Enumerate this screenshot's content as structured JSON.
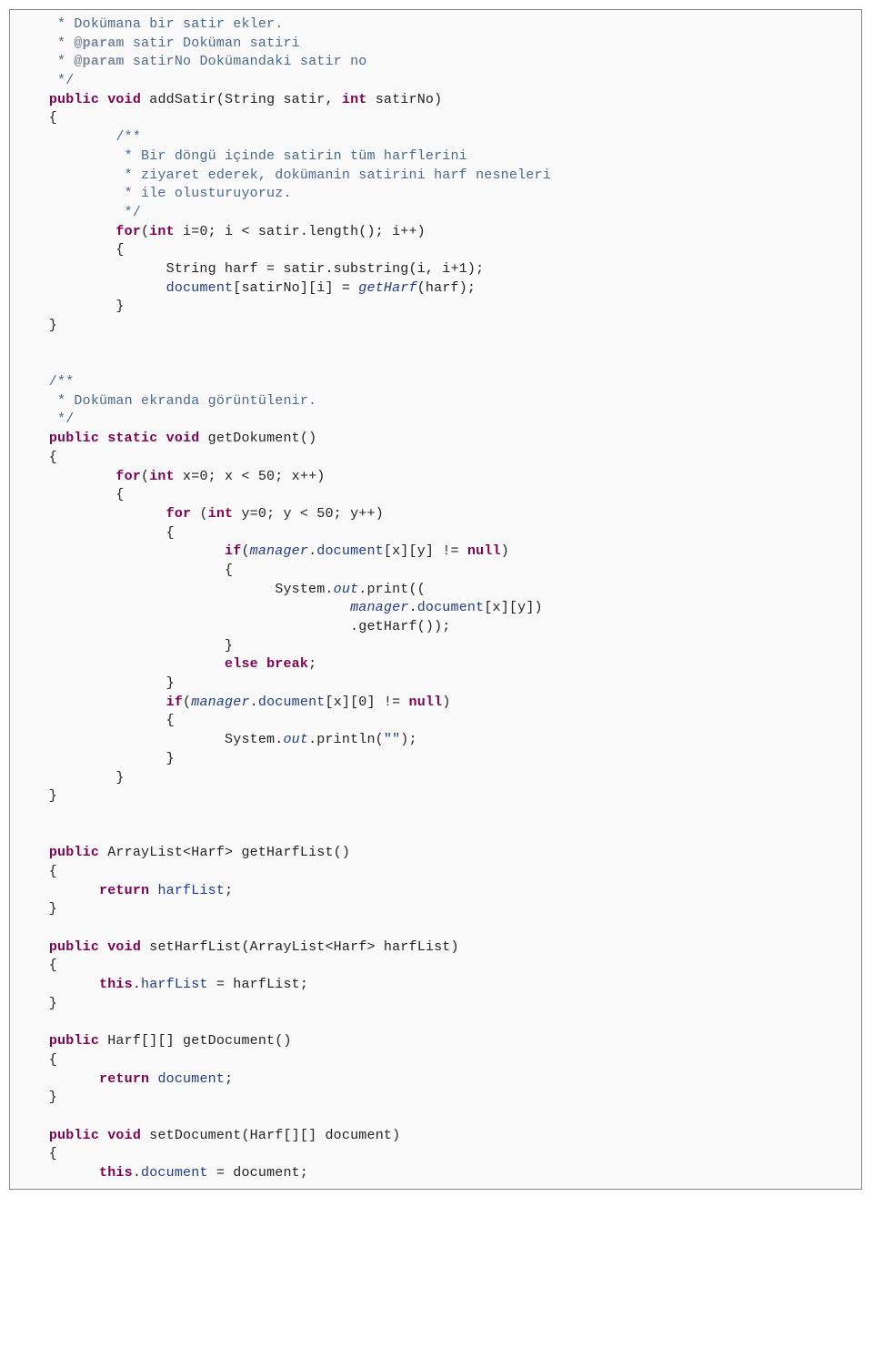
{
  "colors": {
    "background": "#fafafa",
    "border": "#888888",
    "comment": "#4a6a92",
    "tag": "#7a8aa0",
    "keyword": "#7f0055",
    "default": "#222222",
    "field": "#1f3b8a",
    "string": "#1f3b8a"
  },
  "font": {
    "family": "Courier New",
    "size_pt": 11
  },
  "lines": [
    [
      [
        "c",
        "     * Dokümana bir satir ekler."
      ]
    ],
    [
      [
        "c",
        "     * "
      ],
      [
        "tag",
        "@param"
      ],
      [
        "c",
        " satir Doküman satiri"
      ]
    ],
    [
      [
        "c",
        "     * "
      ],
      [
        "tag",
        "@param"
      ],
      [
        "c",
        " satirNo Dokümandaki satir no"
      ]
    ],
    [
      [
        "c",
        "     */"
      ]
    ],
    [
      [
        "id",
        "    "
      ],
      [
        "kw",
        "public"
      ],
      [
        "id",
        " "
      ],
      [
        "kw",
        "void"
      ],
      [
        "id",
        " addSatir(String satir, "
      ],
      [
        "kw",
        "int"
      ],
      [
        "id",
        " satirNo)"
      ]
    ],
    [
      [
        "id",
        "    {"
      ]
    ],
    [
      [
        "c",
        "            /**"
      ]
    ],
    [
      [
        "c",
        "             * Bir döngü içinde satirin tüm harflerini"
      ]
    ],
    [
      [
        "c",
        "             * ziyaret ederek, dokümanin satirini harf nesneleri"
      ]
    ],
    [
      [
        "c",
        "             * ile olusturuyoruz."
      ]
    ],
    [
      [
        "c",
        "             */"
      ]
    ],
    [
      [
        "id",
        "            "
      ],
      [
        "kw",
        "for"
      ],
      [
        "id",
        "("
      ],
      [
        "kw",
        "int"
      ],
      [
        "id",
        " i=0; i < satir.length(); i++)"
      ]
    ],
    [
      [
        "id",
        "            {"
      ]
    ],
    [
      [
        "id",
        "                  String harf = satir.substring(i, i+1);"
      ]
    ],
    [
      [
        "id",
        "                  "
      ],
      [
        "fld",
        "document"
      ],
      [
        "id",
        "[satirNo][i] = "
      ],
      [
        "it",
        "getHarf"
      ],
      [
        "id",
        "(harf);"
      ]
    ],
    [
      [
        "id",
        "            }"
      ]
    ],
    [
      [
        "id",
        "    }"
      ]
    ],
    [
      [
        "id",
        ""
      ]
    ],
    [
      [
        "id",
        ""
      ]
    ],
    [
      [
        "c",
        "    /**"
      ]
    ],
    [
      [
        "c",
        "     * Doküman ekranda görüntülenir."
      ]
    ],
    [
      [
        "c",
        "     */"
      ]
    ],
    [
      [
        "id",
        "    "
      ],
      [
        "kw",
        "public"
      ],
      [
        "id",
        " "
      ],
      [
        "kw",
        "static"
      ],
      [
        "id",
        " "
      ],
      [
        "kw",
        "void"
      ],
      [
        "id",
        " getDokument()"
      ]
    ],
    [
      [
        "id",
        "    {"
      ]
    ],
    [
      [
        "id",
        "            "
      ],
      [
        "kw",
        "for"
      ],
      [
        "id",
        "("
      ],
      [
        "kw",
        "int"
      ],
      [
        "id",
        " x=0; x < 50; x++)"
      ]
    ],
    [
      [
        "id",
        "            {"
      ]
    ],
    [
      [
        "id",
        "                  "
      ],
      [
        "kw",
        "for"
      ],
      [
        "id",
        " ("
      ],
      [
        "kw",
        "int"
      ],
      [
        "id",
        " y=0; y < 50; y++)"
      ]
    ],
    [
      [
        "id",
        "                  {"
      ]
    ],
    [
      [
        "id",
        "                         "
      ],
      [
        "kw",
        "if"
      ],
      [
        "id",
        "("
      ],
      [
        "it",
        "manager"
      ],
      [
        "id",
        "."
      ],
      [
        "fld",
        "document"
      ],
      [
        "id",
        "[x][y] != "
      ],
      [
        "kw",
        "null"
      ],
      [
        "id",
        ")"
      ]
    ],
    [
      [
        "id",
        "                         {"
      ]
    ],
    [
      [
        "id",
        "                               System."
      ],
      [
        "it",
        "out"
      ],
      [
        "id",
        ".print(("
      ]
    ],
    [
      [
        "id",
        "                                        "
      ],
      [
        "it",
        "manager"
      ],
      [
        "id",
        "."
      ],
      [
        "fld",
        "document"
      ],
      [
        "id",
        "[x][y])"
      ]
    ],
    [
      [
        "id",
        "                                        .getHarf());"
      ]
    ],
    [
      [
        "id",
        "                         }"
      ]
    ],
    [
      [
        "id",
        "                         "
      ],
      [
        "kw",
        "else"
      ],
      [
        "id",
        " "
      ],
      [
        "kw",
        "break"
      ],
      [
        "id",
        ";"
      ]
    ],
    [
      [
        "id",
        "                  }"
      ]
    ],
    [
      [
        "id",
        "                  "
      ],
      [
        "kw",
        "if"
      ],
      [
        "id",
        "("
      ],
      [
        "it",
        "manager"
      ],
      [
        "id",
        "."
      ],
      [
        "fld",
        "document"
      ],
      [
        "id",
        "[x][0] != "
      ],
      [
        "kw",
        "null"
      ],
      [
        "id",
        ")"
      ]
    ],
    [
      [
        "id",
        "                  {"
      ]
    ],
    [
      [
        "id",
        "                         System."
      ],
      [
        "it",
        "out"
      ],
      [
        "id",
        ".println("
      ],
      [
        "str",
        "\"\""
      ],
      [
        "id",
        ");"
      ]
    ],
    [
      [
        "id",
        "                  }"
      ]
    ],
    [
      [
        "id",
        "            }"
      ]
    ],
    [
      [
        "id",
        "    }"
      ]
    ],
    [
      [
        "id",
        ""
      ]
    ],
    [
      [
        "id",
        ""
      ]
    ],
    [
      [
        "id",
        "    "
      ],
      [
        "kw",
        "public"
      ],
      [
        "id",
        " ArrayList<Harf> getHarfList()"
      ]
    ],
    [
      [
        "id",
        "    {"
      ]
    ],
    [
      [
        "id",
        "          "
      ],
      [
        "kw",
        "return"
      ],
      [
        "id",
        " "
      ],
      [
        "fld",
        "harfList"
      ],
      [
        "id",
        ";"
      ]
    ],
    [
      [
        "id",
        "    }"
      ]
    ],
    [
      [
        "id",
        ""
      ]
    ],
    [
      [
        "id",
        "    "
      ],
      [
        "kw",
        "public"
      ],
      [
        "id",
        " "
      ],
      [
        "kw",
        "void"
      ],
      [
        "id",
        " setHarfList(ArrayList<Harf> harfList)"
      ]
    ],
    [
      [
        "id",
        "    {"
      ]
    ],
    [
      [
        "id",
        "          "
      ],
      [
        "kw",
        "this"
      ],
      [
        "id",
        "."
      ],
      [
        "fld",
        "harfList"
      ],
      [
        "id",
        " = harfList;"
      ]
    ],
    [
      [
        "id",
        "    }"
      ]
    ],
    [
      [
        "id",
        ""
      ]
    ],
    [
      [
        "id",
        "    "
      ],
      [
        "kw",
        "public"
      ],
      [
        "id",
        " Harf[][] getDocument()"
      ]
    ],
    [
      [
        "id",
        "    {"
      ]
    ],
    [
      [
        "id",
        "          "
      ],
      [
        "kw",
        "return"
      ],
      [
        "id",
        " "
      ],
      [
        "fld",
        "document"
      ],
      [
        "id",
        ";"
      ]
    ],
    [
      [
        "id",
        "    }"
      ]
    ],
    [
      [
        "id",
        ""
      ]
    ],
    [
      [
        "id",
        "    "
      ],
      [
        "kw",
        "public"
      ],
      [
        "id",
        " "
      ],
      [
        "kw",
        "void"
      ],
      [
        "id",
        " setDocument(Harf[][] document)"
      ]
    ],
    [
      [
        "id",
        "    {"
      ]
    ],
    [
      [
        "id",
        "          "
      ],
      [
        "kw",
        "this"
      ],
      [
        "id",
        "."
      ],
      [
        "fld",
        "document"
      ],
      [
        "id",
        " = document;"
      ]
    ]
  ]
}
